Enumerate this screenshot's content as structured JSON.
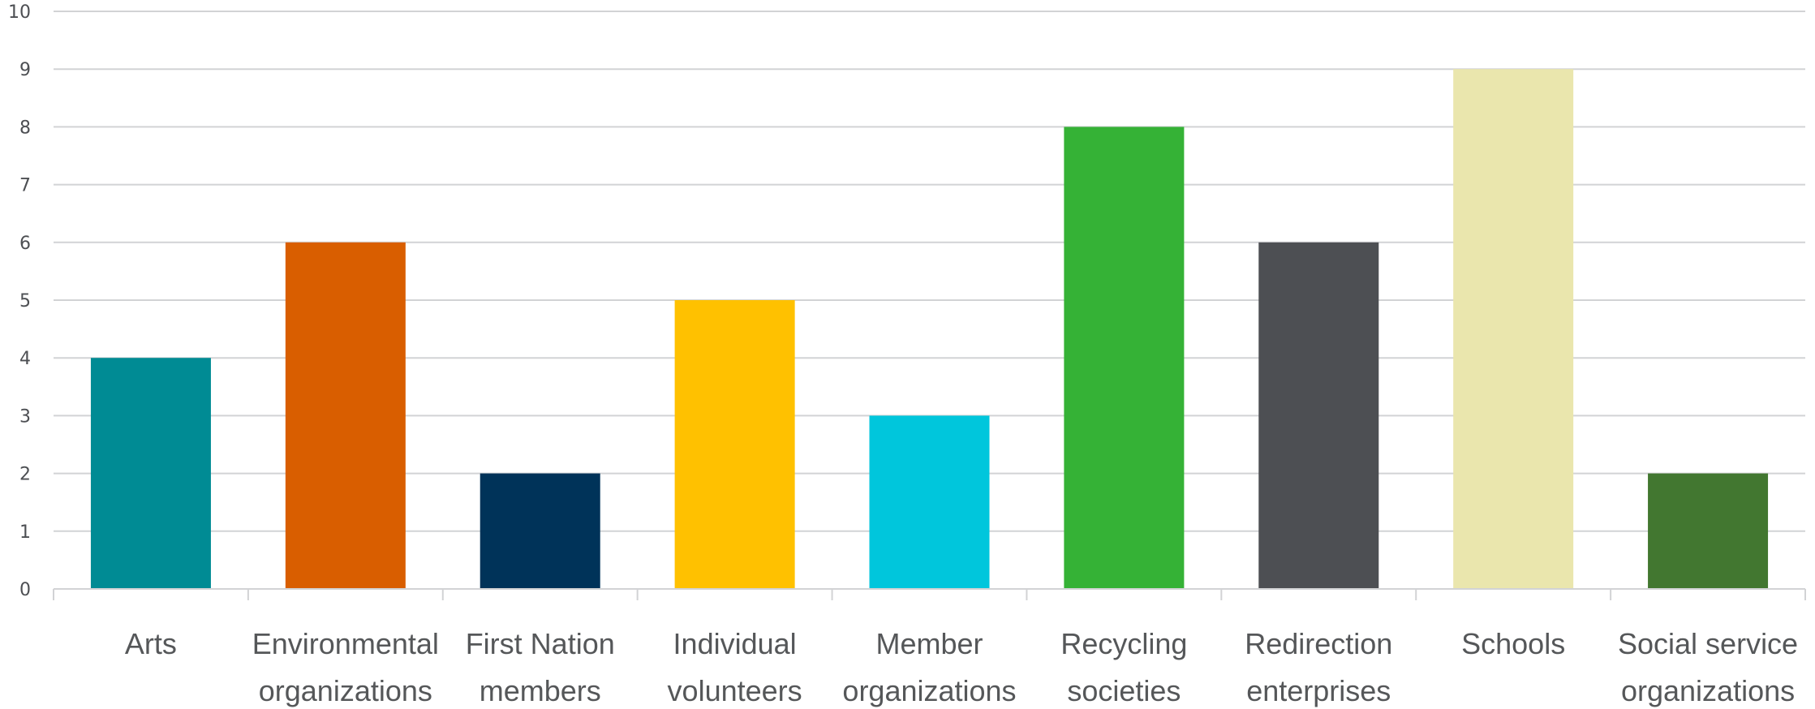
{
  "chart_data": {
    "type": "bar",
    "categories": [
      [
        "Arts"
      ],
      [
        "Environmental",
        "organizations"
      ],
      [
        "First Nation",
        "members"
      ],
      [
        "Individual",
        "volunteers"
      ],
      [
        "Member",
        "organizations"
      ],
      [
        "Recycling",
        "societies"
      ],
      [
        "Redirection",
        "enterprises"
      ],
      [
        "Schools"
      ],
      [
        "Social service",
        "organizations"
      ]
    ],
    "values": [
      4,
      6,
      2,
      5,
      3,
      8,
      6,
      9,
      2
    ],
    "colors": [
      "#008b94",
      "#d95e00",
      "#003359",
      "#ffc100",
      "#00c6dc",
      "#35b236",
      "#4d4f53",
      "#eae6ad",
      "#427730"
    ],
    "ylim": [
      0,
      10
    ],
    "yticks": [
      0,
      1,
      2,
      3,
      4,
      5,
      6,
      7,
      8,
      9,
      10
    ],
    "grid": true,
    "title": "",
    "xlabel": "",
    "ylabel": ""
  }
}
